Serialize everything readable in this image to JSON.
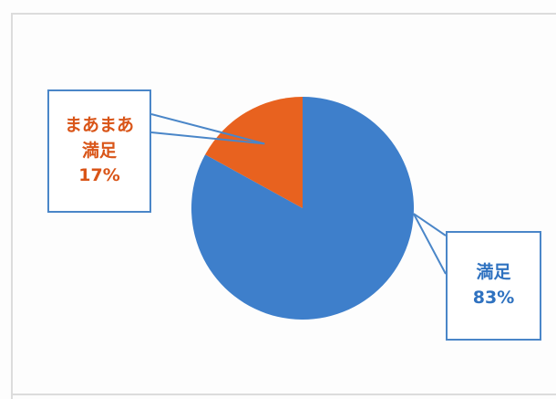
{
  "chart_data": {
    "type": "pie",
    "title": "",
    "slices": [
      {
        "label": "満足",
        "value": 83,
        "display": "83%",
        "color": "#3e7fcb"
      },
      {
        "label": "まあまあ満足",
        "value": 17,
        "display": "17%",
        "color": "#e8621f"
      }
    ]
  },
  "callouts": {
    "mama": {
      "line1": "まあまあ",
      "line2": "満足",
      "pct": "17%",
      "color": "#d95518"
    },
    "manzoku": {
      "line1": "満足",
      "pct": "83%",
      "color": "#2f72c0"
    }
  }
}
